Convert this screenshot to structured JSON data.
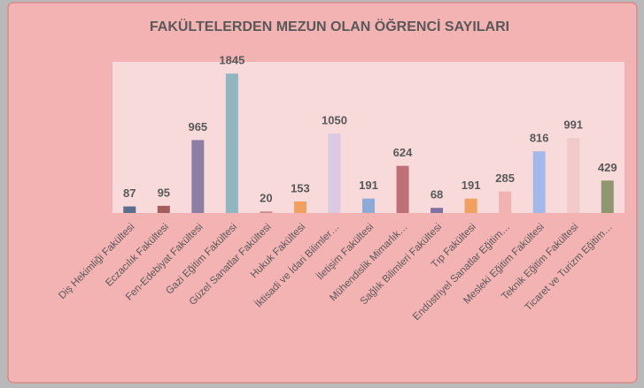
{
  "chart_data": {
    "type": "bar",
    "title": "FAKÜLTELERDEN MEZUN OLAN ÖĞRENCİ SAYILARI",
    "categories": [
      "Diş Hekimliği Fakültesi",
      "Eczacılık Fakültesi",
      "Fen-Edebiyat Fakültesi",
      "Gazi Eğitim Fakültesi",
      "Güzel Sanatlar Fakültesi",
      "Hukuk Fakültesi",
      "İktisadi ve İdari Bilimler…",
      "İletişim Fakültesi",
      "Mühendislik Mimarlık…",
      "Sağlık Bilimleri Fakültesi",
      "Tıp Fakültesi",
      "Endüstriyel Sanatlar Eğitim…",
      "Mesleki Eğitim Fakültesi",
      "Teknik Eğitim Fakültesi",
      "Ticaret ve Turizm Eğitim…"
    ],
    "values": [
      87,
      95,
      965,
      1845,
      20,
      153,
      1050,
      191,
      624,
      68,
      191,
      285,
      816,
      991,
      429
    ],
    "colors": [
      "#5c6f8c",
      "#a55c5c",
      "#8d7ea6",
      "#8fb6c1",
      "#c98787",
      "#f0a160",
      "#d9c9e2",
      "#8dabd9",
      "#bf7077",
      "#8171a3",
      "#f0a160",
      "#f2b2b2",
      "#a2b9ea",
      "#f2c9c9",
      "#8f9770"
    ],
    "ylim": [
      0,
      2000
    ],
    "grid": false
  }
}
